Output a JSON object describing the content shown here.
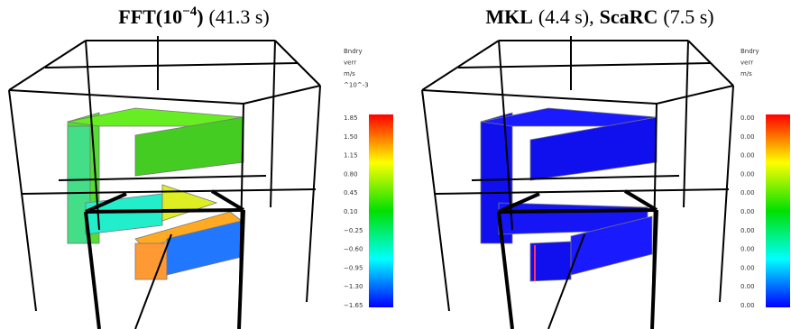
{
  "panels": [
    {
      "title": [
        "FFT(10",
        "−4",
        ")",
        "(41.3 s)"
      ],
      "colorbar": {
        "header": [
          "Bndry",
          "verr",
          "m/s",
          "^10^-3"
        ],
        "ticks": [
          "1.85",
          "1.50",
          "1.15",
          "0.80",
          "0.45",
          "0.10",
          "−0.25",
          "−0.60",
          "−0.95",
          "−1.30",
          "−1.65"
        ]
      }
    },
    {
      "title": [
        "MKL",
        "(4.4 s)",
        ",",
        "ScaRC",
        "(7.5 s)"
      ],
      "colorbar": {
        "header": [
          "Bndry",
          "verr",
          "m/s"
        ],
        "ticks": [
          "0.00",
          "0.00",
          "0.00",
          "0.00",
          "0.00",
          "0.00",
          "0.00",
          "0.00",
          "0.00",
          "0.00",
          "0.00"
        ]
      }
    }
  ]
}
